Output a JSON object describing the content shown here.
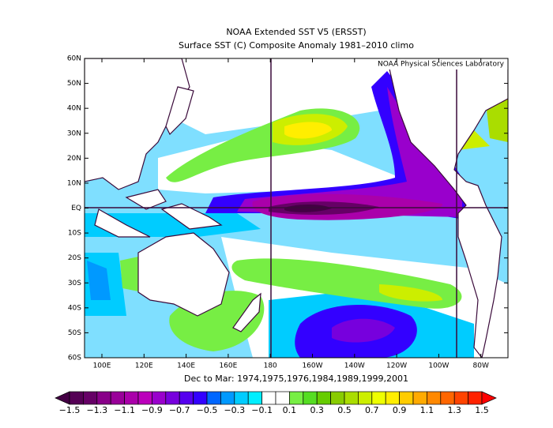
{
  "header": {
    "title": "NOAA Extended SST V5 (ERSST)",
    "subtitle": "Surface SST (C) Composite Anomaly 1981–2010 climo"
  },
  "map": {
    "credit": "NOAA Physical Sciences Laboratory",
    "lat_labels": [
      "60N",
      "50N",
      "40N",
      "30N",
      "20N",
      "10N",
      "EQ",
      "10S",
      "20S",
      "30S",
      "40S",
      "50S",
      "60S"
    ],
    "lon_labels": [
      "100E",
      "120E",
      "140E",
      "160E",
      "180",
      "160W",
      "140W",
      "120W",
      "100W",
      "80W"
    ],
    "caption": "Dec to Mar: 1974,1975,1976,1984,1989,1999,2001"
  },
  "colorbar": {
    "labels": [
      "−1.5",
      "−1.3",
      "−1.1",
      "−0.9",
      "−0.7",
      "−0.5",
      "−0.3",
      "−0.1",
      "0.1",
      "0.3",
      "0.5",
      "0.7",
      "0.9",
      "1.1",
      "1.3",
      "1.5"
    ],
    "colors": [
      "#440044",
      "#550055",
      "#660066",
      "#880088",
      "#990099",
      "#aa00aa",
      "#bb00bb",
      "#9900cc",
      "#7700dd",
      "#5500ee",
      "#3300ff",
      "#0066ff",
      "#0099ff",
      "#00ccff",
      "#00eeff",
      "#ffffff",
      "#ffffff",
      "#77ee44",
      "#55dd22",
      "#66cc00",
      "#88cc00",
      "#aadd00",
      "#ccee00",
      "#eeff00",
      "#ffee00",
      "#ffcc00",
      "#ffaa00",
      "#ff8800",
      "#ff6600",
      "#ff4400",
      "#ff2200",
      "#ff0000"
    ]
  }
}
